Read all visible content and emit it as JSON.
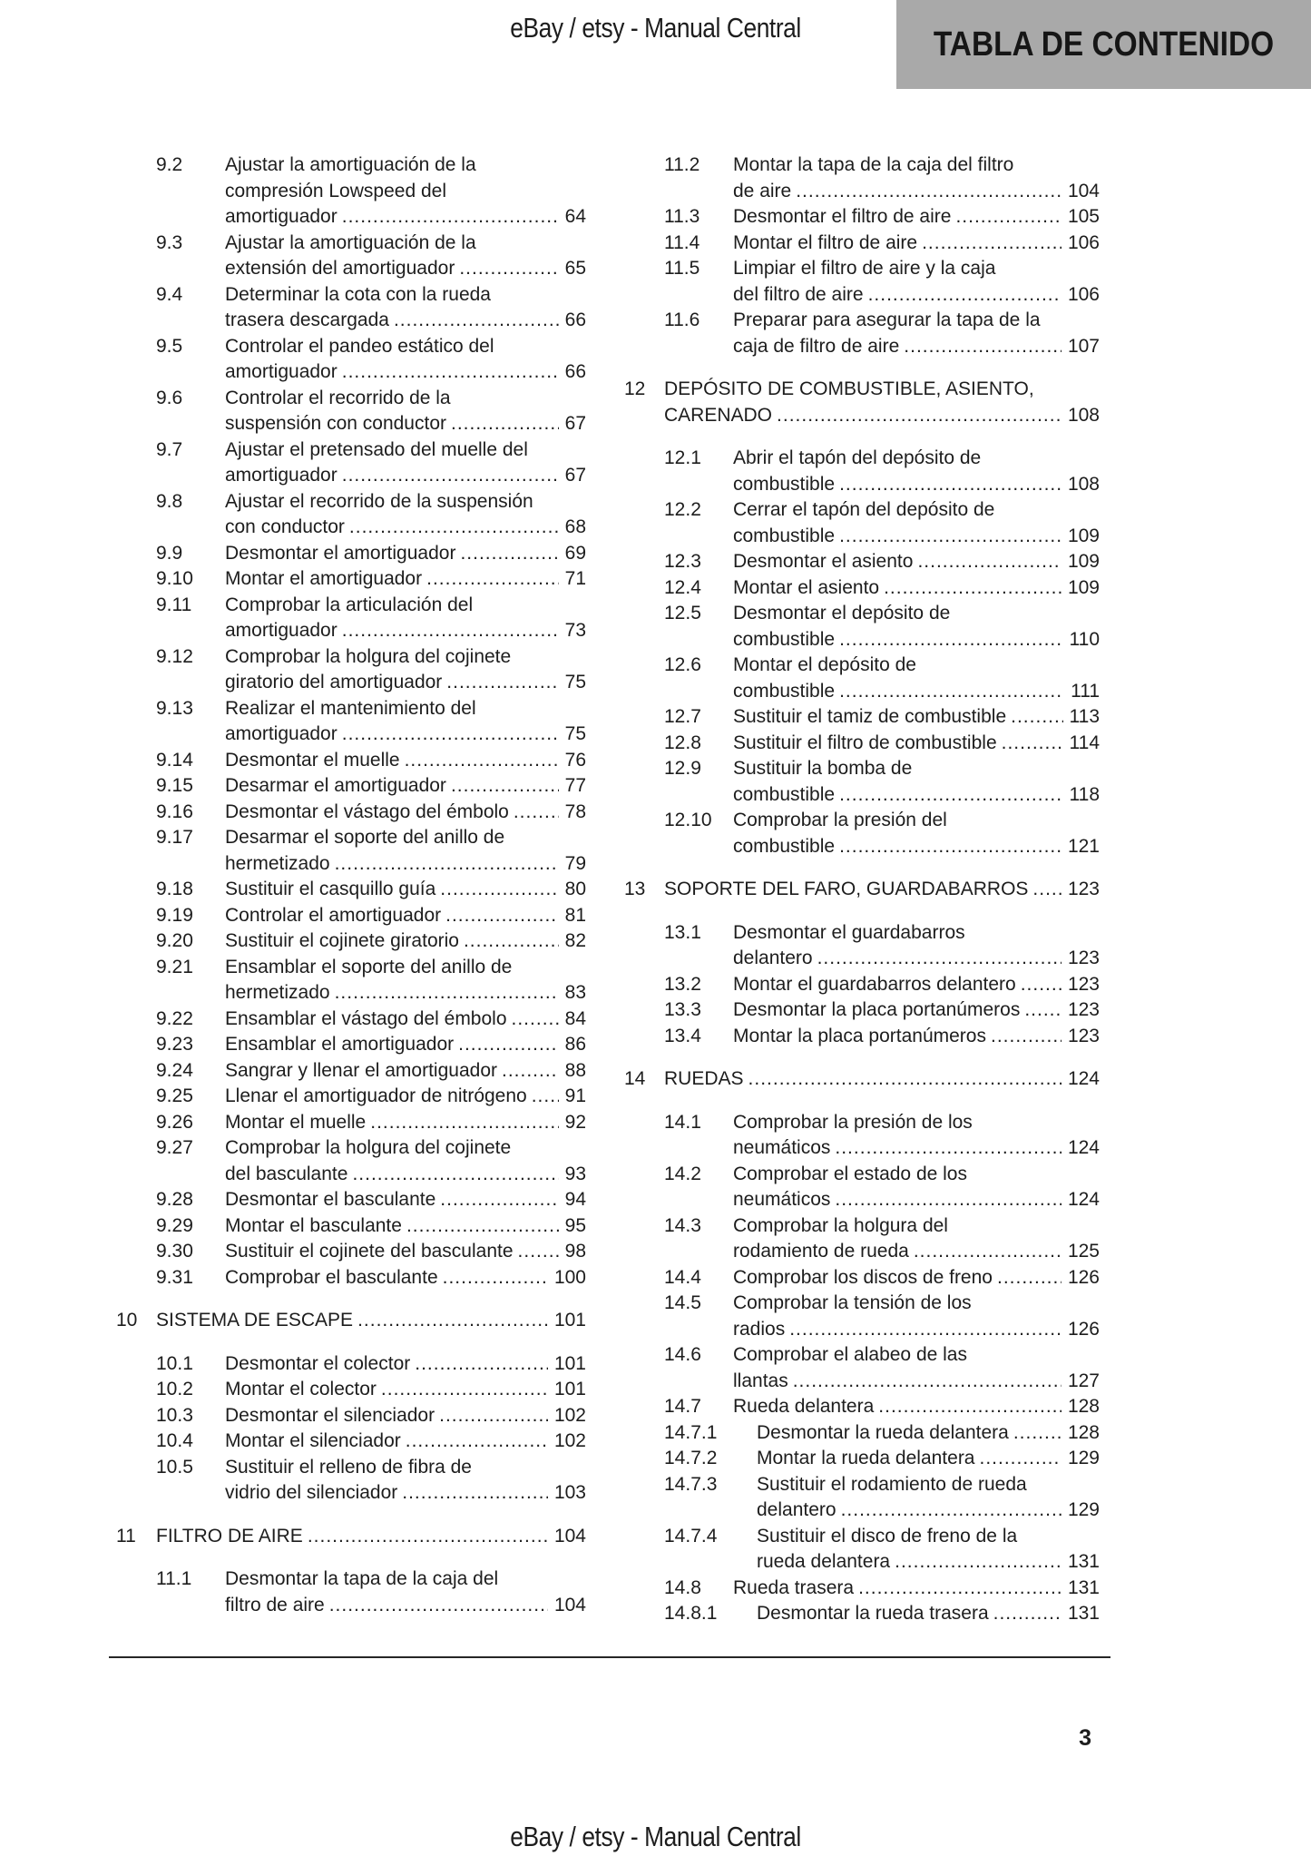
{
  "page": {
    "header_text": "eBay / etsy - Manual Central",
    "footer_text": "eBay / etsy - Manual Central",
    "title_banner": "TABLA DE CONTENIDO",
    "page_number": "3"
  },
  "colors": {
    "banner_bg": "#a9a9a9",
    "text": "#1d1d1d",
    "rule": "#262626"
  },
  "toc": {
    "columns": [
      {
        "entries": [
          {
            "level": "sub",
            "num": "9.2",
            "lines": [
              "Ajustar la amortiguación de la",
              "compresión Lowspeed del",
              "amortiguador"
            ],
            "page": "64"
          },
          {
            "level": "sub",
            "num": "9.3",
            "lines": [
              "Ajustar la amortiguación de la",
              "extensión del amortiguador"
            ],
            "page": "65"
          },
          {
            "level": "sub",
            "num": "9.4",
            "lines": [
              "Determinar la cota con la rueda",
              "trasera descargada"
            ],
            "page": "66"
          },
          {
            "level": "sub",
            "num": "9.5",
            "lines": [
              "Controlar el pandeo estático del",
              "amortiguador"
            ],
            "page": "66"
          },
          {
            "level": "sub",
            "num": "9.6",
            "lines": [
              "Controlar el recorrido de la",
              "suspensión con conductor"
            ],
            "page": "67"
          },
          {
            "level": "sub",
            "num": "9.7",
            "lines": [
              "Ajustar el pretensado del muelle del",
              "amortiguador"
            ],
            "page": "67"
          },
          {
            "level": "sub",
            "num": "9.8",
            "lines": [
              "Ajustar el recorrido de la suspensión",
              "con conductor"
            ],
            "page": "68"
          },
          {
            "level": "sub",
            "num": "9.9",
            "lines": [
              "Desmontar el amortiguador"
            ],
            "page": "69"
          },
          {
            "level": "sub",
            "num": "9.10",
            "lines": [
              "Montar el amortiguador"
            ],
            "page": "71"
          },
          {
            "level": "sub",
            "num": "9.11",
            "lines": [
              "Comprobar la articulación del",
              "amortiguador"
            ],
            "page": "73"
          },
          {
            "level": "sub",
            "num": "9.12",
            "lines": [
              "Comprobar la holgura del cojinete",
              "giratorio del amortiguador"
            ],
            "page": "75"
          },
          {
            "level": "sub",
            "num": "9.13",
            "lines": [
              "Realizar el mantenimiento del",
              "amortiguador"
            ],
            "page": "75"
          },
          {
            "level": "sub",
            "num": "9.14",
            "lines": [
              "Desmontar el muelle"
            ],
            "page": "76"
          },
          {
            "level": "sub",
            "num": "9.15",
            "lines": [
              "Desarmar el amortiguador"
            ],
            "page": "77"
          },
          {
            "level": "sub",
            "num": "9.16",
            "lines": [
              "Desmontar el vástago del émbolo"
            ],
            "page": "78"
          },
          {
            "level": "sub",
            "num": "9.17",
            "lines": [
              "Desarmar el soporte del anillo de",
              "hermetizado"
            ],
            "page": "79"
          },
          {
            "level": "sub",
            "num": "9.18",
            "lines": [
              "Sustituir el casquillo guía"
            ],
            "page": "80"
          },
          {
            "level": "sub",
            "num": "9.19",
            "lines": [
              "Controlar el amortiguador"
            ],
            "page": "81"
          },
          {
            "level": "sub",
            "num": "9.20",
            "lines": [
              "Sustituir el cojinete giratorio"
            ],
            "page": "82"
          },
          {
            "level": "sub",
            "num": "9.21",
            "lines": [
              "Ensamblar el soporte del anillo de",
              "hermetizado"
            ],
            "page": "83"
          },
          {
            "level": "sub",
            "num": "9.22",
            "lines": [
              "Ensamblar el vástago del émbolo"
            ],
            "page": "84"
          },
          {
            "level": "sub",
            "num": "9.23",
            "lines": [
              "Ensamblar el amortiguador"
            ],
            "page": "86"
          },
          {
            "level": "sub",
            "num": "9.24",
            "lines": [
              "Sangrar y llenar el amortiguador"
            ],
            "page": "88"
          },
          {
            "level": "sub",
            "num": "9.25",
            "lines": [
              "Llenar el amortiguador de nitrógeno"
            ],
            "page": "91"
          },
          {
            "level": "sub",
            "num": "9.26",
            "lines": [
              "Montar el muelle"
            ],
            "page": "92"
          },
          {
            "level": "sub",
            "num": "9.27",
            "lines": [
              "Comprobar la holgura del cojinete",
              "del basculante"
            ],
            "page": "93"
          },
          {
            "level": "sub",
            "num": "9.28",
            "lines": [
              "Desmontar el basculante"
            ],
            "page": "94"
          },
          {
            "level": "sub",
            "num": "9.29",
            "lines": [
              "Montar el basculante"
            ],
            "page": "95"
          },
          {
            "level": "sub",
            "num": "9.30",
            "lines": [
              "Sustituir el cojinete del basculante"
            ],
            "page": "98"
          },
          {
            "level": "sub",
            "num": "9.31",
            "lines": [
              "Comprobar el basculante"
            ],
            "page": "100"
          },
          {
            "level": "chapter",
            "num": "10",
            "lines": [
              "SISTEMA DE ESCAPE"
            ],
            "page": "101"
          },
          {
            "level": "sub",
            "num": "10.1",
            "lines": [
              "Desmontar el colector"
            ],
            "page": "101"
          },
          {
            "level": "sub",
            "num": "10.2",
            "lines": [
              "Montar el colector"
            ],
            "page": "101"
          },
          {
            "level": "sub",
            "num": "10.3",
            "lines": [
              "Desmontar el silenciador"
            ],
            "page": "102"
          },
          {
            "level": "sub",
            "num": "10.4",
            "lines": [
              "Montar el silenciador"
            ],
            "page": "102"
          },
          {
            "level": "sub",
            "num": "10.5",
            "lines": [
              "Sustituir el relleno de fibra de",
              "vidrio del silenciador"
            ],
            "page": "103"
          },
          {
            "level": "chapter",
            "num": "11",
            "lines": [
              "FILTRO DE AIRE"
            ],
            "page": "104"
          },
          {
            "level": "sub",
            "num": "11.1",
            "lines": [
              "Desmontar la tapa de la caja del",
              "filtro de aire"
            ],
            "page": "104"
          }
        ]
      },
      {
        "entries": [
          {
            "level": "sub",
            "num": "11.2",
            "lines": [
              "Montar la tapa de la caja del filtro",
              "de aire"
            ],
            "page": "104"
          },
          {
            "level": "sub",
            "num": "11.3",
            "lines": [
              "Desmontar el filtro de aire"
            ],
            "page": "105"
          },
          {
            "level": "sub",
            "num": "11.4",
            "lines": [
              "Montar el filtro de aire"
            ],
            "page": "106"
          },
          {
            "level": "sub",
            "num": "11.5",
            "lines": [
              "Limpiar el filtro de aire y la caja",
              "del filtro de aire"
            ],
            "page": "106"
          },
          {
            "level": "sub",
            "num": "11.6",
            "lines": [
              "Preparar para asegurar la tapa de la",
              "caja de filtro de aire"
            ],
            "page": "107"
          },
          {
            "level": "chapter",
            "num": "12",
            "lines": [
              "DEPÓSITO DE COMBUSTIBLE, ASIENTO,",
              "CARENADO"
            ],
            "page": "108"
          },
          {
            "level": "sub",
            "num": "12.1",
            "lines": [
              "Abrir el tapón del depósito de",
              "combustible"
            ],
            "page": "108"
          },
          {
            "level": "sub",
            "num": "12.2",
            "lines": [
              "Cerrar el tapón del depósito de",
              "combustible"
            ],
            "page": "109"
          },
          {
            "level": "sub",
            "num": "12.3",
            "lines": [
              "Desmontar el asiento"
            ],
            "page": "109"
          },
          {
            "level": "sub",
            "num": "12.4",
            "lines": [
              "Montar el asiento"
            ],
            "page": "109"
          },
          {
            "level": "sub",
            "num": "12.5",
            "lines": [
              "Desmontar el depósito de",
              "combustible"
            ],
            "page": "110"
          },
          {
            "level": "sub",
            "num": "12.6",
            "lines": [
              "Montar el depósito de",
              "combustible"
            ],
            "page": "111"
          },
          {
            "level": "sub",
            "num": "12.7",
            "lines": [
              "Sustituir el tamiz de combustible"
            ],
            "page": "113"
          },
          {
            "level": "sub",
            "num": "12.8",
            "lines": [
              "Sustituir el filtro de combustible"
            ],
            "page": "114"
          },
          {
            "level": "sub",
            "num": "12.9",
            "lines": [
              "Sustituir la bomba de",
              "combustible"
            ],
            "page": "118"
          },
          {
            "level": "sub",
            "num": "12.10",
            "lines": [
              "Comprobar la presión del",
              "combustible"
            ],
            "page": "121"
          },
          {
            "level": "chapter",
            "num": "13",
            "lines": [
              "SOPORTE DEL FARO, GUARDABARROS"
            ],
            "page": "123"
          },
          {
            "level": "sub",
            "num": "13.1",
            "lines": [
              "Desmontar el guardabarros",
              "delantero"
            ],
            "page": "123"
          },
          {
            "level": "sub",
            "num": "13.2",
            "lines": [
              "Montar el guardabarros delantero"
            ],
            "page": "123"
          },
          {
            "level": "sub",
            "num": "13.3",
            "lines": [
              "Desmontar la placa portanúmeros"
            ],
            "page": "123"
          },
          {
            "level": "sub",
            "num": "13.4",
            "lines": [
              "Montar la placa portanúmeros"
            ],
            "page": "123"
          },
          {
            "level": "chapter",
            "num": "14",
            "lines": [
              "RUEDAS"
            ],
            "page": "124"
          },
          {
            "level": "sub",
            "num": "14.1",
            "lines": [
              "Comprobar la presión de los",
              "neumáticos"
            ],
            "page": "124"
          },
          {
            "level": "sub",
            "num": "14.2",
            "lines": [
              "Comprobar el estado de los",
              "neumáticos"
            ],
            "page": "124"
          },
          {
            "level": "sub",
            "num": "14.3",
            "lines": [
              "Comprobar la holgura del",
              "rodamiento de rueda"
            ],
            "page": "125"
          },
          {
            "level": "sub",
            "num": "14.4",
            "lines": [
              "Comprobar los discos de freno"
            ],
            "page": "126"
          },
          {
            "level": "sub",
            "num": "14.5",
            "lines": [
              "Comprobar la tensión de los",
              "radios"
            ],
            "page": "126"
          },
          {
            "level": "sub",
            "num": "14.6",
            "lines": [
              "Comprobar el alabeo de las",
              "llantas"
            ],
            "page": "127"
          },
          {
            "level": "sub",
            "num": "14.7",
            "lines": [
              "Rueda delantera"
            ],
            "page": "128"
          },
          {
            "level": "subsub",
            "num": "14.7.1",
            "lines": [
              "Desmontar la rueda delantera"
            ],
            "page": "128"
          },
          {
            "level": "subsub",
            "num": "14.7.2",
            "lines": [
              "Montar la rueda delantera"
            ],
            "page": "129"
          },
          {
            "level": "subsub",
            "num": "14.7.3",
            "lines": [
              "Sustituir el rodamiento de rueda",
              "delantero"
            ],
            "page": "129"
          },
          {
            "level": "subsub",
            "num": "14.7.4",
            "lines": [
              "Sustituir el disco de freno de la",
              "rueda delantera"
            ],
            "page": "131"
          },
          {
            "level": "sub",
            "num": "14.8",
            "lines": [
              "Rueda trasera"
            ],
            "page": "131"
          },
          {
            "level": "subsub",
            "num": "14.8.1",
            "lines": [
              "Desmontar la rueda trasera"
            ],
            "page": "131"
          }
        ]
      }
    ]
  }
}
